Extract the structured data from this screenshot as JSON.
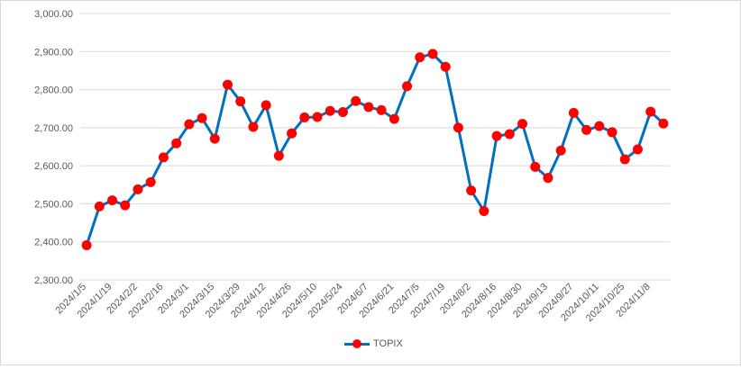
{
  "chart_data": {
    "type": "line",
    "x": [
      "2024/1/5",
      "2024/1/12",
      "2024/1/19",
      "2024/1/26",
      "2024/2/2",
      "2024/2/9",
      "2024/2/16",
      "2024/2/23",
      "2024/3/1",
      "2024/3/8",
      "2024/3/15",
      "2024/3/22",
      "2024/3/29",
      "2024/4/5",
      "2024/4/12",
      "2024/4/19",
      "2024/4/26",
      "2024/5/3",
      "2024/5/10",
      "2024/5/17",
      "2024/5/24",
      "2024/5/31",
      "2024/6/7",
      "2024/6/14",
      "2024/6/21",
      "2024/6/28",
      "2024/7/5",
      "2024/7/12",
      "2024/7/19",
      "2024/7/26",
      "2024/8/2",
      "2024/8/9",
      "2024/8/16",
      "2024/8/23",
      "2024/8/30",
      "2024/9/6",
      "2024/9/13",
      "2024/9/20",
      "2024/9/27",
      "2024/10/4",
      "2024/10/11",
      "2024/10/18",
      "2024/10/25",
      "2024/11/1",
      "2024/11/8",
      "2024/11/15"
    ],
    "tick_labels": [
      "2024/1/5",
      "2024/1/19",
      "2024/2/2",
      "2024/2/16",
      "2024/3/1",
      "2024/3/15",
      "2024/3/29",
      "2024/4/12",
      "2024/4/26",
      "2024/5/10",
      "2024/5/24",
      "2024/6/7",
      "2024/6/21",
      "2024/7/5",
      "2024/7/19",
      "2024/8/2",
      "2024/8/16",
      "2024/8/30",
      "2024/9/13",
      "2024/9/27",
      "2024/10/11",
      "2024/10/25",
      "2024/11/8"
    ],
    "y_tick_labels": [
      "2,300.00",
      "2,400.00",
      "2,500.00",
      "2,600.00",
      "2,700.00",
      "2,800.00",
      "2,900.00",
      "3,000.00"
    ],
    "series": [
      {
        "name": "TOPIX",
        "values": [
          2391,
          2493,
          2509,
          2496,
          2538,
          2557,
          2622,
          2659,
          2709,
          2725,
          2671,
          2813,
          2769,
          2702,
          2759,
          2626,
          2685,
          2727,
          2728,
          2744,
          2741,
          2770,
          2754,
          2746,
          2723,
          2809,
          2885,
          2894,
          2860,
          2700,
          2535,
          2481,
          2678,
          2683,
          2710,
          2597,
          2568,
          2640,
          2739,
          2694,
          2704,
          2688,
          2617,
          2643,
          2742,
          2711
        ]
      }
    ],
    "ylim": [
      2300,
      3000
    ],
    "grid": true,
    "legend_position": "bottom",
    "colors": {
      "line": "#0070c0",
      "marker": "#ff0000",
      "grid": "#d9d9d9"
    }
  }
}
